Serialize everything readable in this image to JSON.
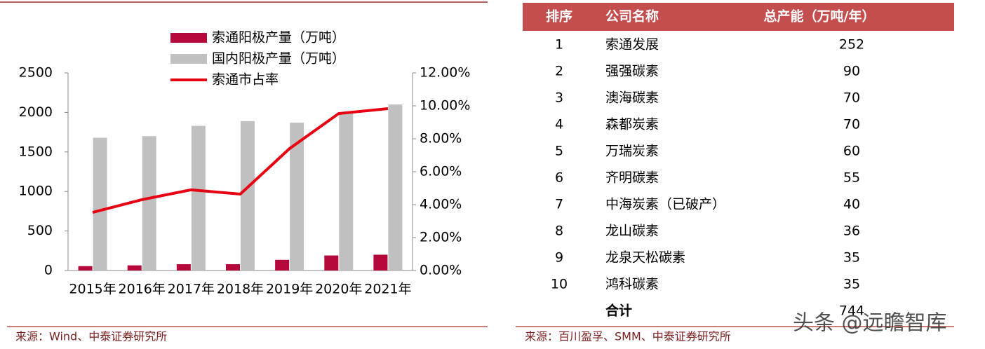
{
  "chart_data": {
    "type": "bar",
    "categories": [
      "2015年",
      "2016年",
      "2017年",
      "2018年",
      "2019年",
      "2020年",
      "2021年"
    ],
    "series": [
      {
        "name": "索通阳极产量（万吨）",
        "color": "#b5093b",
        "type": "bar",
        "values": [
          55,
          65,
          80,
          80,
          135,
          190,
          200
        ]
      },
      {
        "name": "国内阳极产量（万吨）",
        "color": "#c0c0c0",
        "type": "bar",
        "values": [
          1680,
          1700,
          1830,
          1890,
          1870,
          2000,
          2100
        ]
      },
      {
        "name": "索通市占率",
        "color": "#e60012",
        "type": "line",
        "axis": "y2",
        "values": [
          3.53,
          4.3,
          4.9,
          4.64,
          7.4,
          9.53,
          9.83
        ]
      }
    ],
    "ylim": [
      0,
      2500
    ],
    "yticks": [
      0,
      500,
      1000,
      1500,
      2000,
      2500
    ],
    "y2lim": [
      0,
      12
    ],
    "y2ticks": [
      {
        "value": 0,
        "label": "0.00%"
      },
      {
        "value": 2,
        "label": "2.00%"
      },
      {
        "value": 4,
        "label": "4.00%"
      },
      {
        "value": 6,
        "label": "6.00%"
      },
      {
        "value": 8,
        "label": "8.00%"
      },
      {
        "value": 10,
        "label": "10.00%"
      },
      {
        "value": 12,
        "label": "12.00%"
      }
    ],
    "source": "来源：Wind、中泰证券研究所"
  },
  "table": {
    "header": [
      "排序",
      "公司名称",
      "总产能（万吨/年）"
    ],
    "rows": [
      [
        1,
        "索通发展",
        252
      ],
      [
        2,
        "强强碳素",
        90
      ],
      [
        3,
        "澳海碳素",
        70
      ],
      [
        4,
        "森都炭素",
        70
      ],
      [
        5,
        "万瑞炭素",
        60
      ],
      [
        6,
        "齐明碳素",
        55
      ],
      [
        7,
        "中海炭素（已破产）",
        40
      ],
      [
        8,
        "龙山碳素",
        36
      ],
      [
        9,
        "龙泉天松碳素",
        35
      ],
      [
        10,
        "鸿科碳素",
        35
      ]
    ],
    "total": {
      "label": "合计",
      "value": 744
    },
    "source": "来源：百川盈孚、SMM、中泰证券研究所"
  },
  "watermark": "头条 @远瞻智库"
}
